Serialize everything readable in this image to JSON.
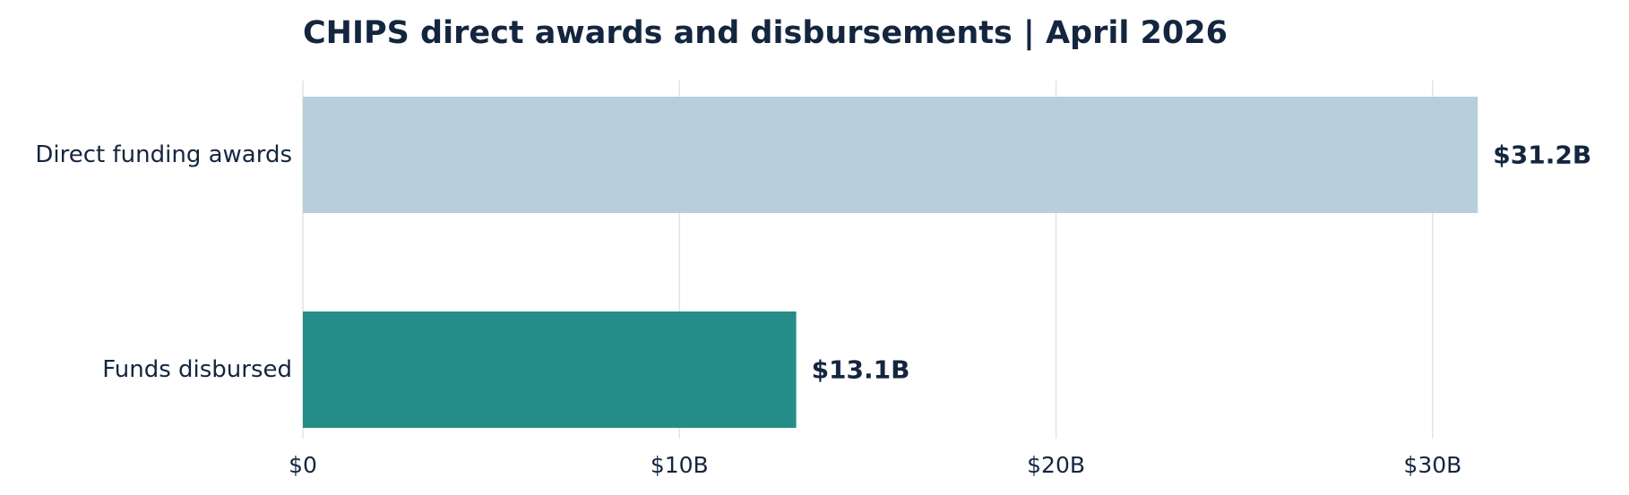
{
  "chart_data": {
    "type": "bar",
    "orientation": "horizontal",
    "title": "CHIPS direct awards and disbursements | April 2026",
    "xlabel": "",
    "ylabel": "",
    "categories": [
      "Direct funding awards",
      "Funds disbursed"
    ],
    "values": [
      31.2,
      13.1
    ],
    "value_labels": [
      "$31.2B",
      "$13.1B"
    ],
    "bar_colors": [
      "#b8cfdb",
      "#258d87"
    ],
    "xlim": [
      0,
      34.5
    ],
    "xticks": [
      0,
      10,
      20,
      30
    ],
    "xtick_labels": [
      "$0",
      "$10B",
      "$20B",
      "$30B"
    ],
    "grid": "vertical",
    "legend": "none"
  },
  "colors": {
    "text": "#14263f",
    "grid": "#e3e3e3"
  }
}
